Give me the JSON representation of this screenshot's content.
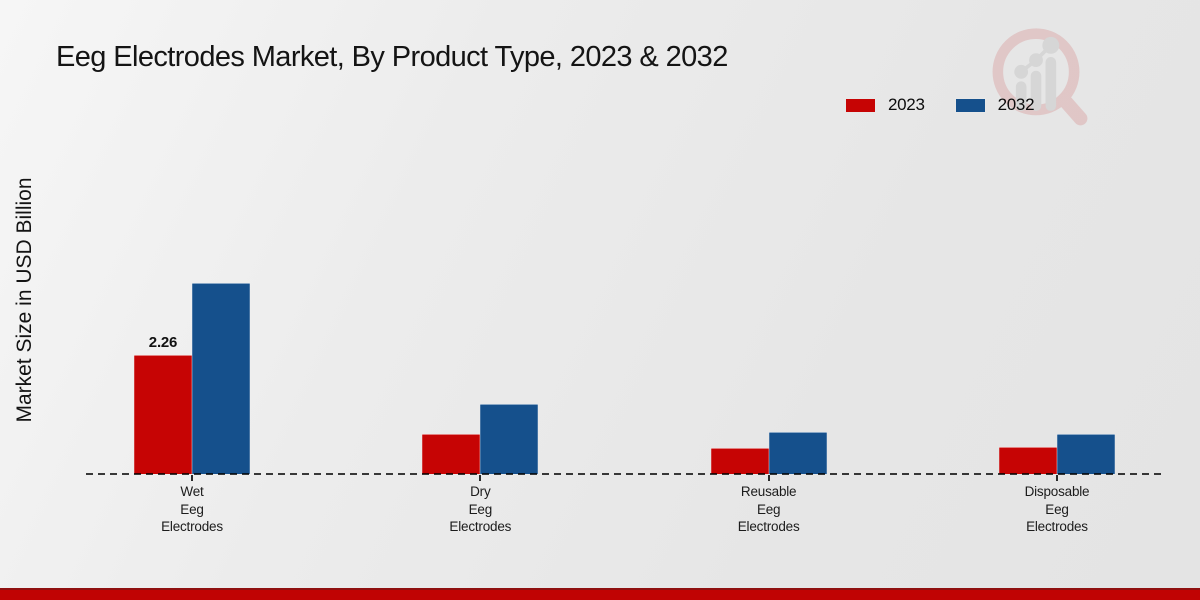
{
  "title": "Eeg Electrodes Market, By Product Type, 2023 & 2032",
  "y_axis_label": "Market Size in USD Billion",
  "legend": {
    "items": [
      {
        "label": "2023",
        "color": "#c60404"
      },
      {
        "label": "2032",
        "color": "#15508c"
      }
    ]
  },
  "chart_data": {
    "type": "bar",
    "title": "Eeg Electrodes Market, By Product Type, 2023 & 2032",
    "xlabel": "",
    "ylabel": "Market Size in USD Billion",
    "unit": "USD Billion",
    "categories": [
      "Wet Eeg Electrodes",
      "Dry Eeg Electrodes",
      "Reusable Eeg Electrodes",
      "Disposable Eeg Electrodes"
    ],
    "category_label_lines": [
      [
        "Wet",
        "Eeg",
        "Electrodes"
      ],
      [
        "Dry",
        "Eeg",
        "Electrodes"
      ],
      [
        "Reusable",
        "Eeg",
        "Electrodes"
      ],
      [
        "Disposable",
        "Eeg",
        "Electrodes"
      ]
    ],
    "series": [
      {
        "name": "2023",
        "color": "#c60404",
        "values": [
          2.26,
          0.77,
          0.49,
          0.52
        ]
      },
      {
        "name": "2032",
        "color": "#15508c",
        "values": [
          3.63,
          1.34,
          0.79,
          0.76
        ]
      }
    ],
    "annotations": [
      {
        "series": "2023",
        "category": "Wet Eeg Electrodes",
        "text": "2.26"
      }
    ],
    "ylim": [
      0,
      4
    ],
    "grid": false,
    "legend_position": "top-right",
    "baseline_style": "dashed"
  },
  "colors": {
    "red": "#c60404",
    "blue": "#15508c",
    "footer_strip": "#c00303",
    "footer_strip_edge": "#8f1010",
    "watermark_ring": "#dcaeae",
    "watermark_glyph": "#c9c9c9"
  }
}
